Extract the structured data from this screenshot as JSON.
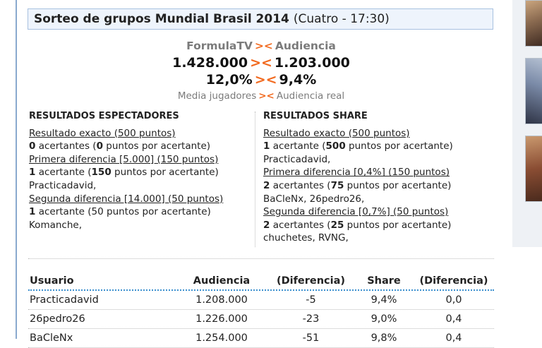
{
  "title": {
    "main": "Sorteo de grupos Mundial Brasil 2014",
    "sub": "(Cuatro - 17:30)"
  },
  "comparison": {
    "separator": "><",
    "left_label": "FormulaTV",
    "right_label": "Audiencia",
    "left_audience": "1.428.000",
    "right_audience": "1.203.000",
    "left_share": "12,0%",
    "right_share": "9,4%",
    "left_caption": "Media jugadores",
    "right_caption": "Audiencia real"
  },
  "results_viewers": {
    "heading": "RESULTADOS ESPECTADORES",
    "exact": {
      "label": "Resultado exacto (500 puntos)",
      "count": "0",
      "text_a": " acertantes (",
      "points": "0",
      "text_b": " puntos por acertante)",
      "names": ""
    },
    "first": {
      "label": "Primera diferencia [5.000] (150 puntos)",
      "count": "1",
      "text_a": " acertante (",
      "points": "150",
      "text_b": " puntos por acertante)",
      "names": "Practicadavid,"
    },
    "second": {
      "label": "Segunda diferencia [14.000] (50 puntos)",
      "count": "1",
      "text_a": " acertante (50 puntos por acertante)",
      "names": "Komanche,"
    }
  },
  "results_share": {
    "heading": "RESULTADOS SHARE",
    "exact": {
      "label": "Resultado exacto (500 puntos)",
      "count": "1",
      "text_a": " acertante (",
      "points": "500",
      "text_b": " puntos por acertante)",
      "names": "Practicadavid,"
    },
    "first": {
      "label": "Primera diferencia [0,4%] (150 puntos)",
      "count": "2",
      "text_a": " acertantes (",
      "points": "75",
      "text_b": " puntos por acertante)",
      "names": "BaCleNx, 26pedro26,"
    },
    "second": {
      "label": "Segunda diferencia [0,7%] (50 puntos)",
      "count": "2",
      "text_a": " acertantes (",
      "points": "25",
      "text_b": " puntos por acertante)",
      "names": "chuchetes, RVNG,"
    }
  },
  "table": {
    "headers": [
      "Usuario",
      "Audiencia",
      "(Diferencia)",
      "Share",
      "(Diferencia)"
    ],
    "rows": [
      [
        "Practicadavid",
        "1.208.000",
        "-5",
        "9,4%",
        "0,0"
      ],
      [
        "26pedro26",
        "1.226.000",
        "-23",
        "9,0%",
        "0,4"
      ],
      [
        "BaCleNx",
        "1.254.000",
        "-51",
        "9,8%",
        "0,4"
      ]
    ]
  }
}
